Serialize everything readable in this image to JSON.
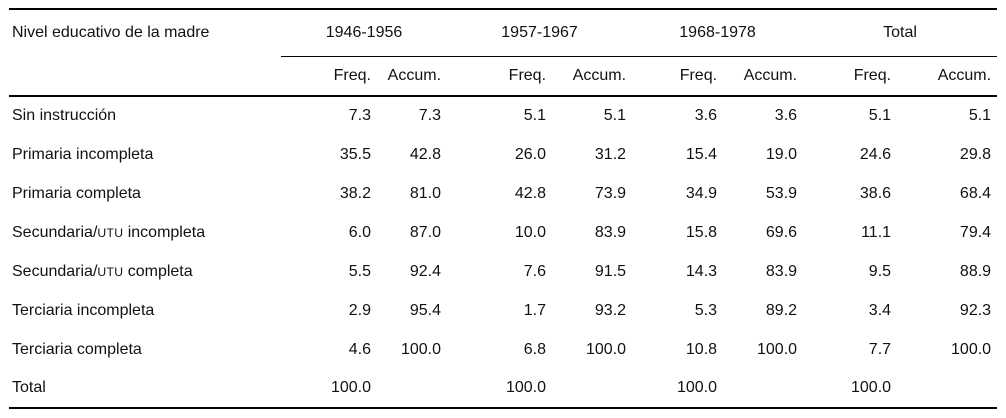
{
  "table": {
    "row_header_label": "Nivel educativo de la madre",
    "groups": [
      {
        "label": "1946-1956"
      },
      {
        "label": "1957-1967"
      },
      {
        "label": "1968-1978"
      },
      {
        "label": "Total"
      }
    ],
    "subheaders": [
      "Freq.",
      "Accum."
    ],
    "rows": [
      {
        "label": "Sin instrucción",
        "values": [
          "7.3",
          "7.3",
          "5.1",
          "5.1",
          "3.6",
          "3.6",
          "5.1",
          "5.1"
        ]
      },
      {
        "label": "Primaria incompleta",
        "values": [
          "35.5",
          "42.8",
          "26.0",
          "31.2",
          "15.4",
          "19.0",
          "24.6",
          "29.8"
        ]
      },
      {
        "label": "Primaria completa",
        "values": [
          "38.2",
          "81.0",
          "42.8",
          "73.9",
          "34.9",
          "53.9",
          "38.6",
          "68.4"
        ]
      },
      {
        "label_parts": {
          "pre": "Secundaria/",
          "sc": "UTU",
          "post": " incompleta"
        },
        "values": [
          "6.0",
          "87.0",
          "10.0",
          "83.9",
          "15.8",
          "69.6",
          "11.1",
          "79.4"
        ]
      },
      {
        "label_parts": {
          "pre": "Secundaria/",
          "sc": "UTU",
          "post": " completa"
        },
        "values": [
          "5.5",
          "92.4",
          "7.6",
          "91.5",
          "14.3",
          "83.9",
          "9.5",
          "88.9"
        ]
      },
      {
        "label": "Terciaria incompleta",
        "values": [
          "2.9",
          "95.4",
          "1.7",
          "93.2",
          "5.3",
          "89.2",
          "3.4",
          "92.3"
        ]
      },
      {
        "label": "Terciaria completa",
        "values": [
          "4.6",
          "100.0",
          "6.8",
          "100.0",
          "10.8",
          "100.0",
          "7.7",
          "100.0"
        ]
      },
      {
        "label": "Total",
        "values": [
          "100.0",
          "",
          "100.0",
          "",
          "100.0",
          "",
          "100.0",
          ""
        ]
      }
    ]
  }
}
